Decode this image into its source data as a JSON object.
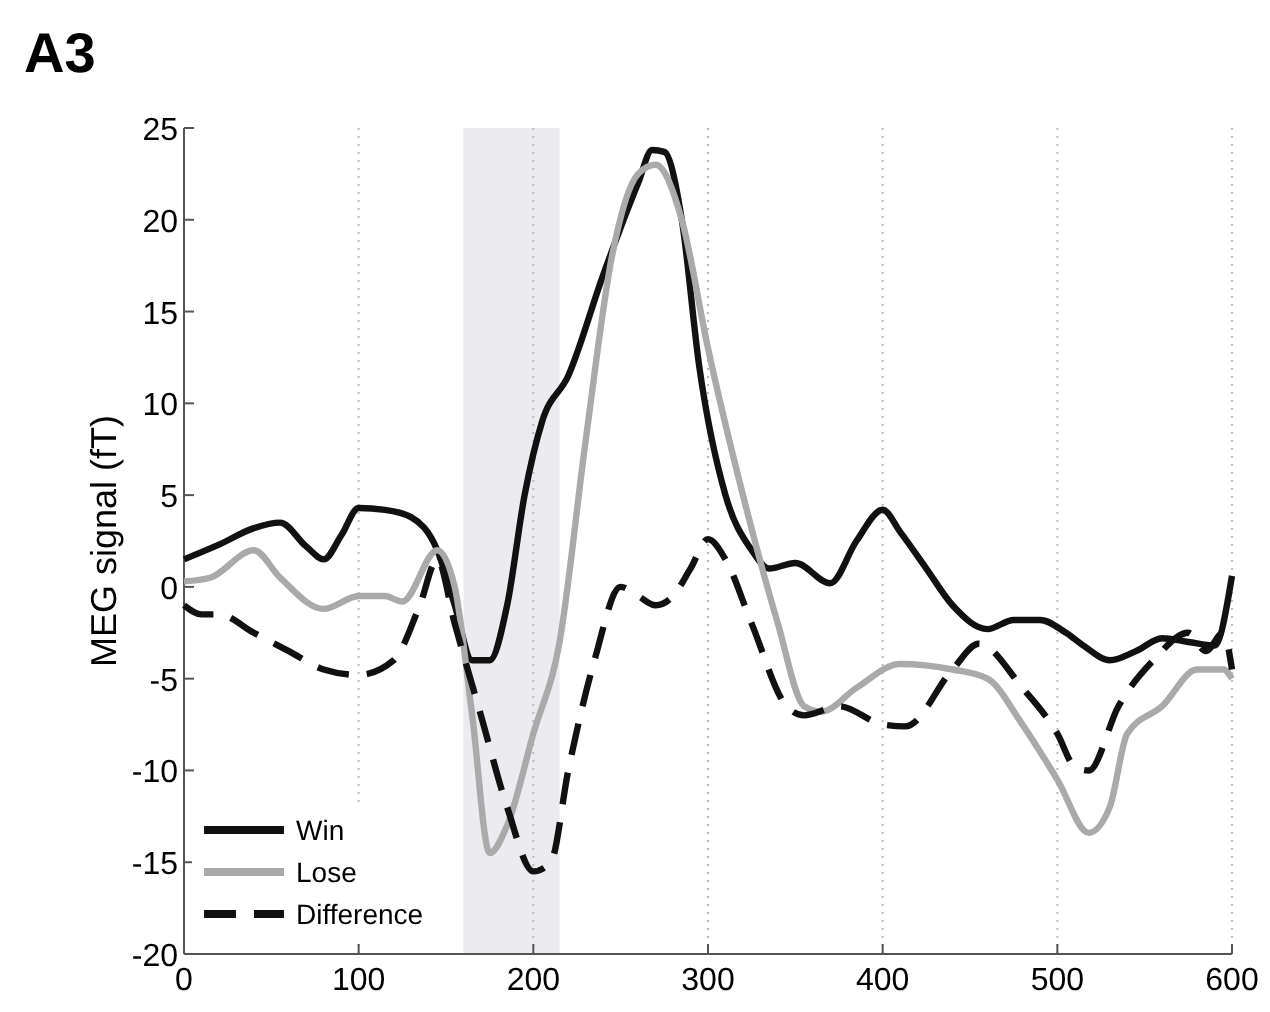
{
  "chart_data": {
    "type": "line",
    "title": "A3",
    "ylabel": "MEG signal (fT)",
    "xlim": [
      0,
      600
    ],
    "ylim": [
      -20,
      25
    ],
    "xticks": [
      0,
      100,
      200,
      300,
      400,
      500,
      600
    ],
    "yticks": [
      -20,
      -15,
      -10,
      -5,
      0,
      5,
      10,
      15,
      20,
      25
    ],
    "grid": "x",
    "legend": "bottom left",
    "line_style": "solid",
    "bands": [
      {
        "axis": "x",
        "from": 160,
        "to": 215,
        "color": "#ebebf0"
      }
    ],
    "series": [
      {
        "name": "Win",
        "color": "#111111",
        "x": [
          0,
          20,
          40,
          55,
          70,
          80,
          90,
          100,
          115,
          130,
          145,
          155,
          165,
          175,
          185,
          195,
          205,
          220,
          240,
          260,
          268,
          275,
          285,
          295,
          310,
          325,
          335,
          350,
          370,
          385,
          400,
          410,
          425,
          440,
          460,
          475,
          490,
          505,
          515,
          530,
          545,
          560,
          575,
          590,
          600
        ],
        "values": [
          1.5,
          2.3,
          3.2,
          3.5,
          2.2,
          1.5,
          2.8,
          4.3,
          4.2,
          3.8,
          2,
          -1,
          -4,
          -4,
          -1,
          5,
          9,
          11.5,
          17,
          22,
          23.8,
          23.7,
          20,
          12,
          5,
          2,
          1,
          1.3,
          0.2,
          2.5,
          4.2,
          3,
          1,
          -1,
          -2.3,
          -1.8,
          -1.8,
          -2.5,
          -3.2,
          -4,
          -3.5,
          -2.8,
          -3,
          -3.2,
          0.6
        ]
      },
      {
        "name": "Lose",
        "color": "#aaaaaa",
        "x": [
          0,
          15,
          40,
          55,
          80,
          100,
          115,
          125,
          145,
          155,
          165,
          175,
          185,
          200,
          215,
          230,
          245,
          260,
          270,
          285,
          300,
          320,
          340,
          355,
          365,
          385,
          410,
          440,
          460,
          480,
          500,
          518,
          530,
          540,
          560,
          580,
          595,
          600
        ],
        "values": [
          0.3,
          0.5,
          2,
          0.5,
          -1.2,
          -0.5,
          -0.5,
          -0.8,
          2,
          0,
          -7,
          -14.5,
          -13,
          -8,
          -3,
          8,
          18,
          22.5,
          23,
          20,
          13,
          5,
          -2,
          -6.5,
          -6.8,
          -5.5,
          -4.2,
          -4.5,
          -5,
          -7.5,
          -10.5,
          -13.4,
          -12,
          -8,
          -6.5,
          -4.5,
          -4.5,
          -5
        ]
      },
      {
        "name": "Difference",
        "color": "#111111",
        "line_style": "dashed",
        "x": [
          0,
          10,
          20,
          40,
          60,
          80,
          100,
          120,
          135,
          145,
          155,
          170,
          185,
          200,
          210,
          220,
          235,
          250,
          260,
          270,
          280,
          290,
          300,
          310,
          325,
          345,
          355,
          375,
          400,
          413,
          440,
          455,
          480,
          500,
          510,
          518,
          535,
          555,
          575,
          585,
          595,
          600
        ],
        "values": [
          -1,
          -1.5,
          -1.5,
          -2.5,
          -3.5,
          -4.5,
          -4.8,
          -4,
          -1,
          1.5,
          -2,
          -7,
          -12,
          -15.5,
          -15,
          -10,
          -4,
          0,
          -0.5,
          -1,
          -0.5,
          1,
          2.6,
          1.5,
          -2,
          -6.5,
          -7,
          -6.5,
          -7.5,
          -7.6,
          -4.5,
          -3.1,
          -5.5,
          -8,
          -9.8,
          -10,
          -6.5,
          -4,
          -2.5,
          -3.5,
          -2.5,
          -4.5
        ]
      }
    ]
  }
}
